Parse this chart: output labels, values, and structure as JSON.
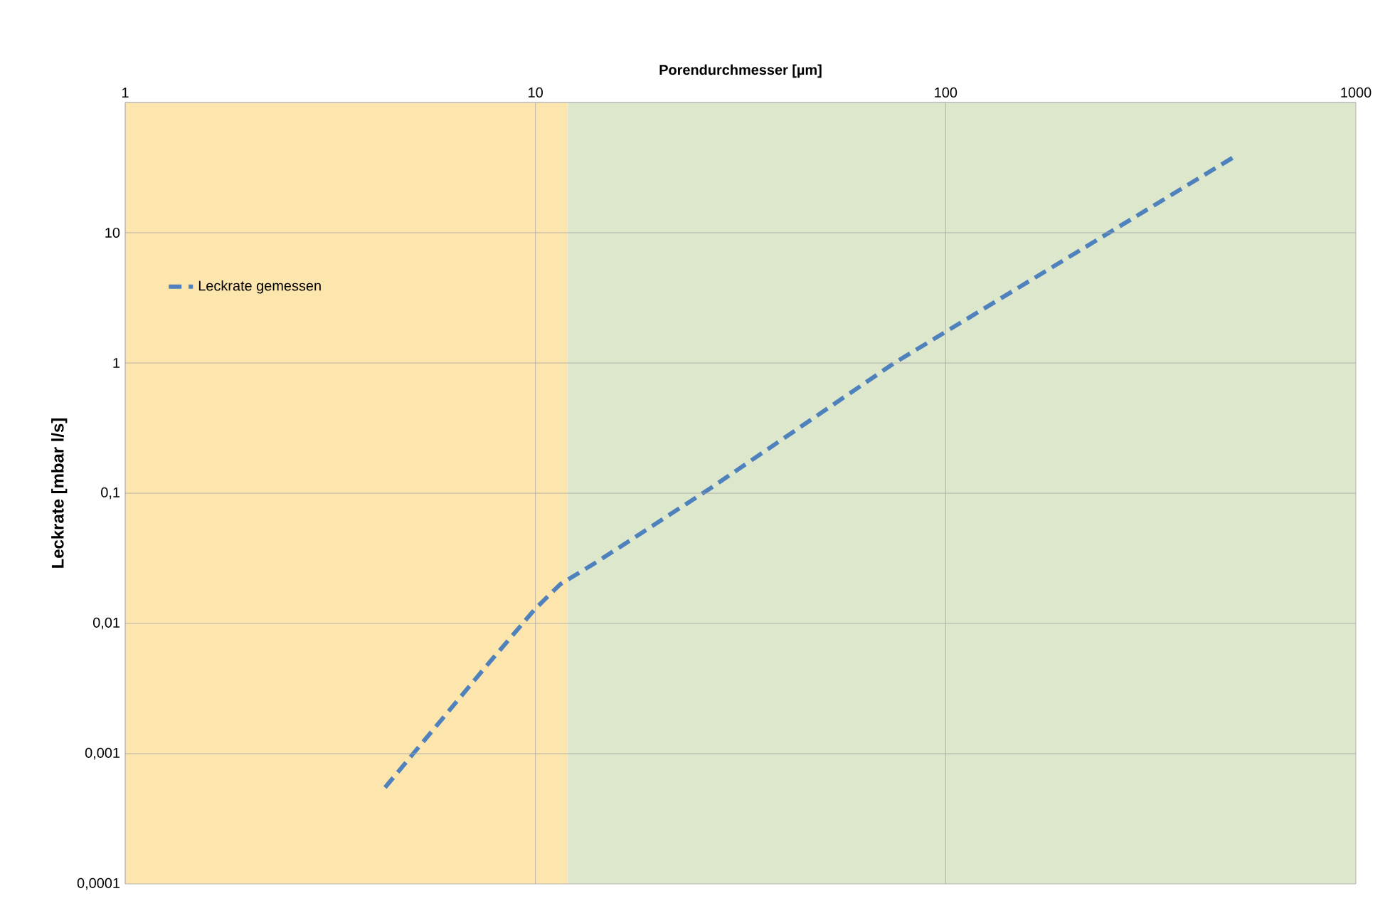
{
  "chart_data": {
    "type": "line",
    "xlabel": "Porendurchmesser [µm]",
    "ylabel": "Leckrate [mbar l/s]",
    "log": "xy",
    "grid": true,
    "legend": "top left",
    "line_style": "dashed",
    "marker": "none",
    "x": [
      4.3,
      7.5,
      10,
      11.5,
      14.2,
      26.8,
      75,
      510
    ],
    "series": [
      {
        "name": "Leckrate gemessen",
        "color": "#4f81bd",
        "values": [
          0.00055,
          0.0045,
          0.013,
          0.02,
          0.03,
          0.11,
          1,
          39
        ]
      }
    ],
    "xlim": [
      1,
      1000
    ],
    "xticks": [
      1,
      10,
      100,
      1000
    ],
    "ylim": [
      0.0001,
      100
    ],
    "yticks": [
      {
        "value": 0.0001,
        "label": "0,0001"
      },
      {
        "value": 0.001,
        "label": "0,001"
      },
      {
        "value": 0.01,
        "label": "0,01"
      },
      {
        "value": 0.1,
        "label": "0,1"
      },
      {
        "value": 1,
        "label": "1"
      },
      {
        "value": 10,
        "label": "10"
      },
      {
        "value": 100,
        "label": null
      }
    ],
    "bands": [
      {
        "axis": "x",
        "from": 1,
        "to": 12,
        "color": "#fde6ae"
      },
      {
        "axis": "x",
        "from": 12,
        "to": 1000,
        "color": "#dde7cc"
      }
    ]
  }
}
